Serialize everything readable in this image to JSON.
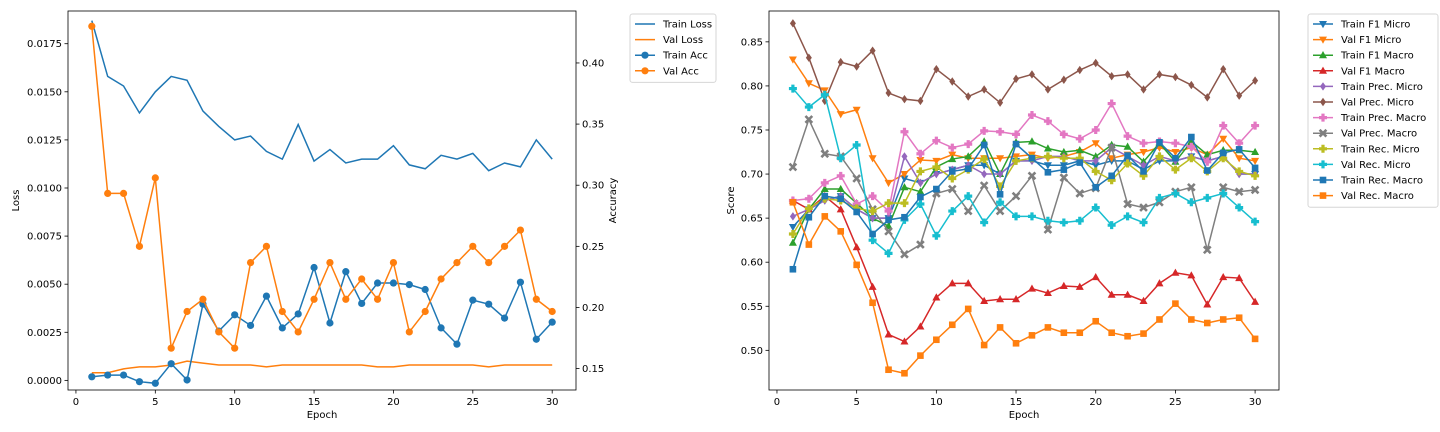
{
  "colors": {
    "blue": "#1f77b4",
    "orange": "#ff7f0e",
    "green": "#2ca02c",
    "red": "#d62728",
    "purple": "#9467bd",
    "brown": "#8c564b",
    "pink": "#e377c2",
    "gray": "#7f7f7f",
    "olive": "#bcbd22",
    "cyan": "#17becf"
  },
  "chart_data": [
    {
      "type": "line",
      "xlabel": "Epoch",
      "ylabel": "Loss",
      "y2label": "Accuracy",
      "xlim": [
        -0.5,
        31.5
      ],
      "ylim": [
        -0.0005,
        0.0192
      ],
      "y2lim": [
        0.1325,
        0.4425
      ],
      "xticks": [
        0,
        5,
        10,
        15,
        20,
        25,
        30
      ],
      "yticks": [
        0.0,
        0.0025,
        0.005,
        0.0075,
        0.01,
        0.0125,
        0.015,
        0.0175
      ],
      "ytick_labels": [
        "0.0000",
        "0.0025",
        "0.0050",
        "0.0075",
        "0.0100",
        "0.0125",
        "0.0150",
        "0.0175"
      ],
      "y2ticks": [
        0.15,
        0.2,
        0.25,
        0.3,
        0.35,
        0.4
      ],
      "y2tick_labels": [
        "0.15",
        "0.20",
        "0.25",
        "0.30",
        "0.35",
        "0.40"
      ],
      "grid": false,
      "legend_position": "outside-top-right",
      "x": [
        1,
        2,
        3,
        4,
        5,
        6,
        7,
        8,
        9,
        10,
        11,
        12,
        13,
        14,
        15,
        16,
        17,
        18,
        19,
        20,
        21,
        22,
        23,
        24,
        25,
        26,
        27,
        28,
        29,
        30
      ],
      "series": [
        {
          "name": "Train Loss",
          "axis": "left",
          "color": "blue",
          "marker": "none",
          "values": [
            0.0187,
            0.0158,
            0.0153,
            0.0139,
            0.015,
            0.0158,
            0.0156,
            0.014,
            0.0132,
            0.0125,
            0.0127,
            0.0119,
            0.0115,
            0.0133,
            0.0114,
            0.012,
            0.0113,
            0.0115,
            0.0115,
            0.0122,
            0.0112,
            0.011,
            0.0117,
            0.0115,
            0.0118,
            0.0109,
            0.0113,
            0.0111,
            0.0125,
            0.0115
          ]
        },
        {
          "name": "Val Loss",
          "axis": "left",
          "color": "orange",
          "marker": "none",
          "values": [
            0.0004,
            0.0004,
            0.0006,
            0.0007,
            0.0007,
            0.0008,
            0.001,
            0.0009,
            0.0008,
            0.0008,
            0.0008,
            0.0007,
            0.0008,
            0.0008,
            0.0008,
            0.0008,
            0.0008,
            0.0008,
            0.0007,
            0.0007,
            0.0008,
            0.0008,
            0.0008,
            0.0008,
            0.0008,
            0.0007,
            0.0008,
            0.0008,
            0.0008,
            0.0008
          ]
        },
        {
          "name": "Train Acc",
          "axis": "right",
          "color": "blue",
          "marker": "circle",
          "values": [
            0.1433,
            0.1447,
            0.1447,
            0.1393,
            0.138,
            0.154,
            0.1407,
            0.2027,
            0.1807,
            0.194,
            0.1853,
            0.2093,
            0.1833,
            0.1947,
            0.2327,
            0.1873,
            0.2293,
            0.2033,
            0.22,
            0.22,
            0.2187,
            0.2147,
            0.1833,
            0.17,
            0.206,
            0.2027,
            0.1913,
            0.2207,
            0.174,
            0.188
          ]
        },
        {
          "name": "Val Acc",
          "axis": "right",
          "color": "orange",
          "marker": "circle",
          "values": [
            0.43,
            0.2933,
            0.2933,
            0.25,
            0.306,
            0.1667,
            0.1967,
            0.2067,
            0.18,
            0.1667,
            0.2367,
            0.25,
            0.1967,
            0.18,
            0.2067,
            0.2367,
            0.2067,
            0.2233,
            0.2067,
            0.2367,
            0.18,
            0.1967,
            0.2233,
            0.2367,
            0.25,
            0.2367,
            0.25,
            0.2633,
            0.2067,
            0.1967
          ]
        }
      ]
    },
    {
      "type": "line",
      "xlabel": "Epoch",
      "ylabel": "Score",
      "xlim": [
        -0.5,
        31.5
      ],
      "ylim": [
        0.455,
        0.885
      ],
      "xticks": [
        0,
        5,
        10,
        15,
        20,
        25,
        30
      ],
      "yticks": [
        0.5,
        0.55,
        0.6,
        0.65,
        0.7,
        0.75,
        0.8,
        0.85
      ],
      "ytick_labels": [
        "0.50",
        "0.55",
        "0.60",
        "0.65",
        "0.70",
        "0.75",
        "0.80",
        "0.85"
      ],
      "grid": false,
      "legend_position": "outside-top-right",
      "x": [
        1,
        2,
        3,
        4,
        5,
        6,
        7,
        8,
        9,
        10,
        11,
        12,
        13,
        14,
        15,
        16,
        17,
        18,
        19,
        20,
        21,
        22,
        23,
        24,
        25,
        26,
        27,
        28,
        29,
        30
      ],
      "series": [
        {
          "name": "Train F1 Micro",
          "color": "blue",
          "marker": "tri-down",
          "values": [
            0.64,
            0.66,
            0.67,
            0.675,
            0.66,
            0.65,
            0.65,
            0.695,
            0.69,
            0.7,
            0.705,
            0.71,
            0.71,
            0.7,
            0.715,
            0.715,
            0.71,
            0.71,
            0.715,
            0.71,
            0.715,
            0.715,
            0.705,
            0.715,
            0.715,
            0.72,
            0.715,
            0.72,
            0.7,
            0.7
          ]
        },
        {
          "name": "Val F1 Micro",
          "color": "orange",
          "marker": "tri-down",
          "values": [
            0.83,
            0.803,
            0.795,
            0.768,
            0.773,
            0.718,
            0.69,
            0.7,
            0.716,
            0.715,
            0.722,
            0.718,
            0.718,
            0.718,
            0.72,
            0.722,
            0.718,
            0.72,
            0.725,
            0.735,
            0.718,
            0.722,
            0.725,
            0.73,
            0.725,
            0.73,
            0.722,
            0.74,
            0.718,
            0.715
          ]
        },
        {
          "name": "Train F1 Macro",
          "color": "green",
          "marker": "tri-up",
          "values": [
            0.622,
            0.66,
            0.683,
            0.683,
            0.667,
            0.65,
            0.641,
            0.685,
            0.68,
            0.708,
            0.717,
            0.72,
            0.737,
            0.7,
            0.736,
            0.737,
            0.729,
            0.725,
            0.727,
            0.72,
            0.733,
            0.731,
            0.714,
            0.735,
            0.714,
            0.737,
            0.722,
            0.727,
            0.727,
            0.725
          ]
        },
        {
          "name": "Val F1 Macro",
          "color": "red",
          "marker": "tri-up",
          "values": [
            0.67,
            0.66,
            0.675,
            0.66,
            0.617,
            0.572,
            0.518,
            0.51,
            0.527,
            0.56,
            0.576,
            0.576,
            0.556,
            0.558,
            0.558,
            0.57,
            0.565,
            0.573,
            0.572,
            0.583,
            0.563,
            0.563,
            0.556,
            0.576,
            0.588,
            0.585,
            0.552,
            0.583,
            0.582,
            0.555
          ]
        },
        {
          "name": "Train Prec. Micro",
          "color": "purple",
          "marker": "diamond",
          "values": [
            0.652,
            0.66,
            0.67,
            0.675,
            0.66,
            0.65,
            0.65,
            0.72,
            0.69,
            0.7,
            0.705,
            0.71,
            0.7,
            0.7,
            0.715,
            0.715,
            0.72,
            0.72,
            0.715,
            0.715,
            0.73,
            0.72,
            0.71,
            0.72,
            0.715,
            0.72,
            0.715,
            0.72,
            0.7,
            0.7
          ]
        },
        {
          "name": "Val Prec. Micro",
          "color": "brown",
          "marker": "diamond",
          "values": [
            0.871,
            0.832,
            0.783,
            0.827,
            0.822,
            0.84,
            0.792,
            0.785,
            0.783,
            0.819,
            0.805,
            0.788,
            0.796,
            0.781,
            0.808,
            0.813,
            0.796,
            0.807,
            0.818,
            0.826,
            0.811,
            0.813,
            0.796,
            0.813,
            0.81,
            0.801,
            0.787,
            0.819,
            0.789,
            0.806
          ]
        },
        {
          "name": "Train Prec. Macro",
          "color": "pink",
          "marker": "plus",
          "values": [
            0.67,
            0.672,
            0.69,
            0.698,
            0.666,
            0.675,
            0.658,
            0.748,
            0.723,
            0.738,
            0.73,
            0.734,
            0.749,
            0.748,
            0.745,
            0.767,
            0.76,
            0.745,
            0.74,
            0.75,
            0.78,
            0.743,
            0.735,
            0.737,
            0.735,
            0.731,
            0.714,
            0.755,
            0.735,
            0.755
          ]
        },
        {
          "name": "Val Prec. Macro",
          "color": "gray",
          "marker": "x",
          "values": [
            0.708,
            0.762,
            0.723,
            0.72,
            0.695,
            0.66,
            0.635,
            0.609,
            0.62,
            0.678,
            0.683,
            0.658,
            0.687,
            0.658,
            0.675,
            0.698,
            0.637,
            0.696,
            0.678,
            0.684,
            0.73,
            0.666,
            0.662,
            0.668,
            0.68,
            0.685,
            0.614,
            0.685,
            0.68,
            0.682
          ]
        },
        {
          "name": "Train Rec. Micro",
          "color": "olive",
          "marker": "plus",
          "values": [
            0.632,
            0.661,
            0.672,
            0.67,
            0.661,
            0.658,
            0.667,
            0.667,
            0.703,
            0.708,
            0.695,
            0.705,
            0.717,
            0.686,
            0.715,
            0.718,
            0.72,
            0.718,
            0.718,
            0.703,
            0.693,
            0.712,
            0.698,
            0.72,
            0.705,
            0.718,
            0.703,
            0.718,
            0.703,
            0.698
          ]
        },
        {
          "name": "Val Rec. Micro",
          "color": "cyan",
          "marker": "plus",
          "values": [
            0.797,
            0.776,
            0.79,
            0.718,
            0.733,
            0.625,
            0.61,
            0.648,
            0.666,
            0.63,
            0.658,
            0.675,
            0.645,
            0.668,
            0.652,
            0.652,
            0.647,
            0.645,
            0.647,
            0.662,
            0.642,
            0.652,
            0.645,
            0.673,
            0.678,
            0.668,
            0.673,
            0.678,
            0.662,
            0.646
          ]
        },
        {
          "name": "Train Rec. Macro",
          "color": "blue",
          "marker": "square",
          "values": [
            0.592,
            0.651,
            0.675,
            0.672,
            0.657,
            0.632,
            0.648,
            0.651,
            0.674,
            0.683,
            0.703,
            0.706,
            0.733,
            0.677,
            0.734,
            0.718,
            0.702,
            0.705,
            0.713,
            0.685,
            0.698,
            0.721,
            0.703,
            0.736,
            0.718,
            0.742,
            0.704,
            0.724,
            0.728,
            0.707
          ]
        },
        {
          "name": "Val Rec. Macro",
          "color": "orange",
          "marker": "square",
          "values": [
            0.668,
            0.62,
            0.652,
            0.635,
            0.597,
            0.554,
            0.478,
            0.474,
            0.494,
            0.512,
            0.529,
            0.547,
            0.506,
            0.526,
            0.508,
            0.517,
            0.526,
            0.52,
            0.52,
            0.533,
            0.52,
            0.516,
            0.519,
            0.535,
            0.553,
            0.535,
            0.531,
            0.535,
            0.537,
            0.513
          ]
        }
      ]
    }
  ]
}
